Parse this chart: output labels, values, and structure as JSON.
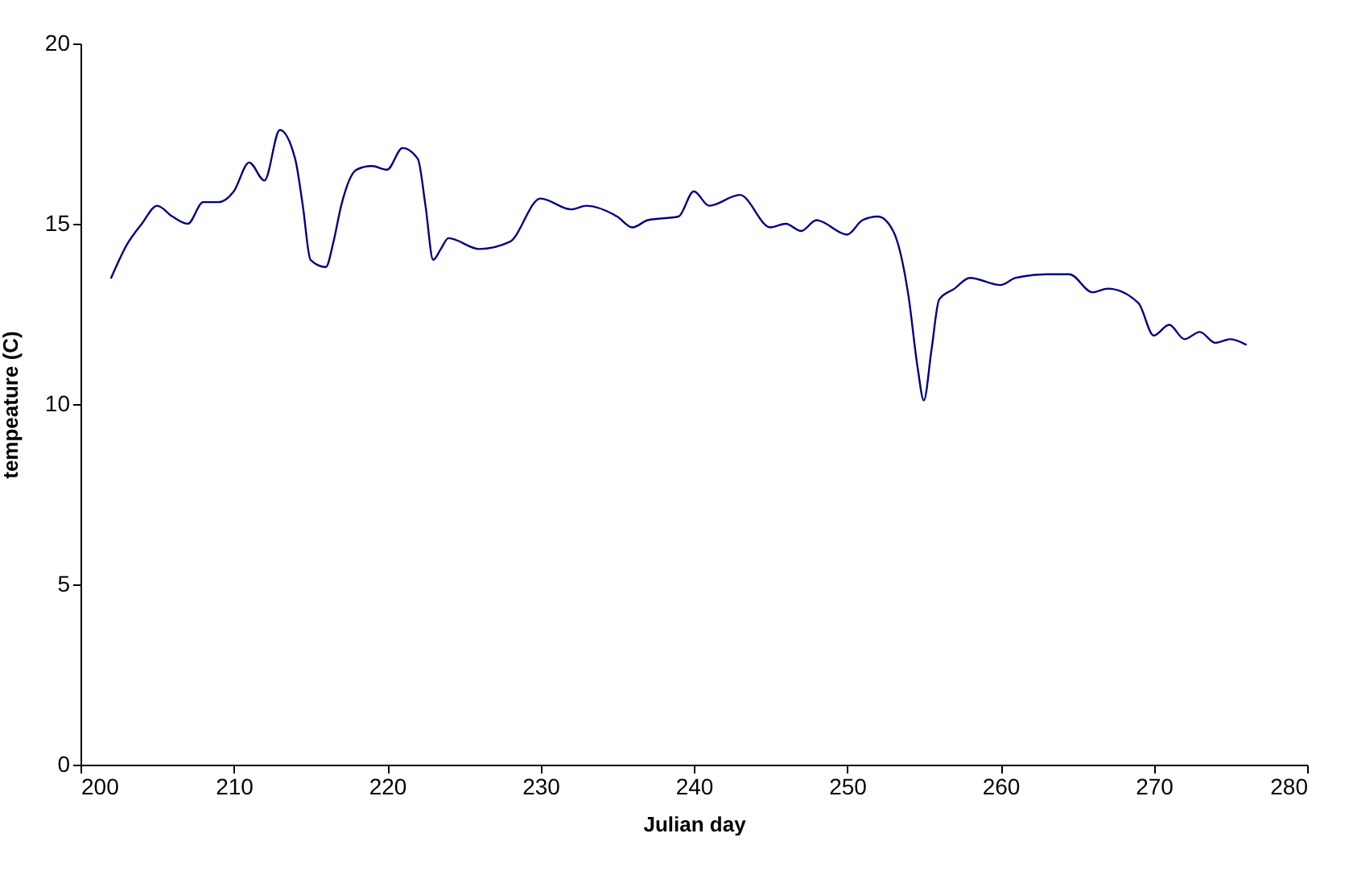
{
  "chart_data": {
    "type": "line",
    "xlabel": "Julian day",
    "ylabel": "tempeature (C)",
    "x": [
      202,
      203,
      204,
      205,
      206,
      207,
      208,
      209,
      210,
      211,
      212,
      213,
      214,
      214.5,
      215,
      216,
      216.5,
      217,
      218,
      219,
      220,
      221,
      222,
      222.5,
      223,
      223.5,
      224,
      226,
      228,
      230,
      232,
      233,
      235,
      236,
      237,
      239,
      240,
      241,
      243,
      245,
      246,
      247,
      248,
      250,
      251,
      252,
      253,
      254,
      254.6,
      255,
      255.5,
      256,
      257,
      258,
      260,
      261,
      263,
      264.5,
      266,
      267,
      269,
      270,
      271,
      272,
      273,
      274,
      275,
      276
    ],
    "series": [
      {
        "color": "#000080",
        "values": [
          13.5,
          14.4,
          15.0,
          15.5,
          15.2,
          15.0,
          15.6,
          15.6,
          15.9,
          16.7,
          16.2,
          17.6,
          16.8,
          15.5,
          14.0,
          13.8,
          14.5,
          15.5,
          16.5,
          16.6,
          16.5,
          17.1,
          16.8,
          15.5,
          14.0,
          14.3,
          14.6,
          14.3,
          14.5,
          15.7,
          15.4,
          15.5,
          15.2,
          14.9,
          15.1,
          15.2,
          15.9,
          15.5,
          15.8,
          14.9,
          15.0,
          14.8,
          15.1,
          14.7,
          15.1,
          15.2,
          14.8,
          13.0,
          11.0,
          10.1,
          11.5,
          12.9,
          13.2,
          13.5,
          13.3,
          13.5,
          13.6,
          13.6,
          13.1,
          13.2,
          12.8,
          11.9,
          12.2,
          11.8,
          12.0,
          11.7,
          11.8,
          11.65
        ]
      }
    ],
    "xlim": [
      200,
      280
    ],
    "xticks": [
      200,
      210,
      220,
      230,
      240,
      250,
      260,
      270,
      280
    ],
    "ylim": [
      0,
      20
    ],
    "yticks": [
      0,
      5,
      10,
      15,
      20
    ],
    "grid": false,
    "marker": "none",
    "line_style": "solid"
  }
}
